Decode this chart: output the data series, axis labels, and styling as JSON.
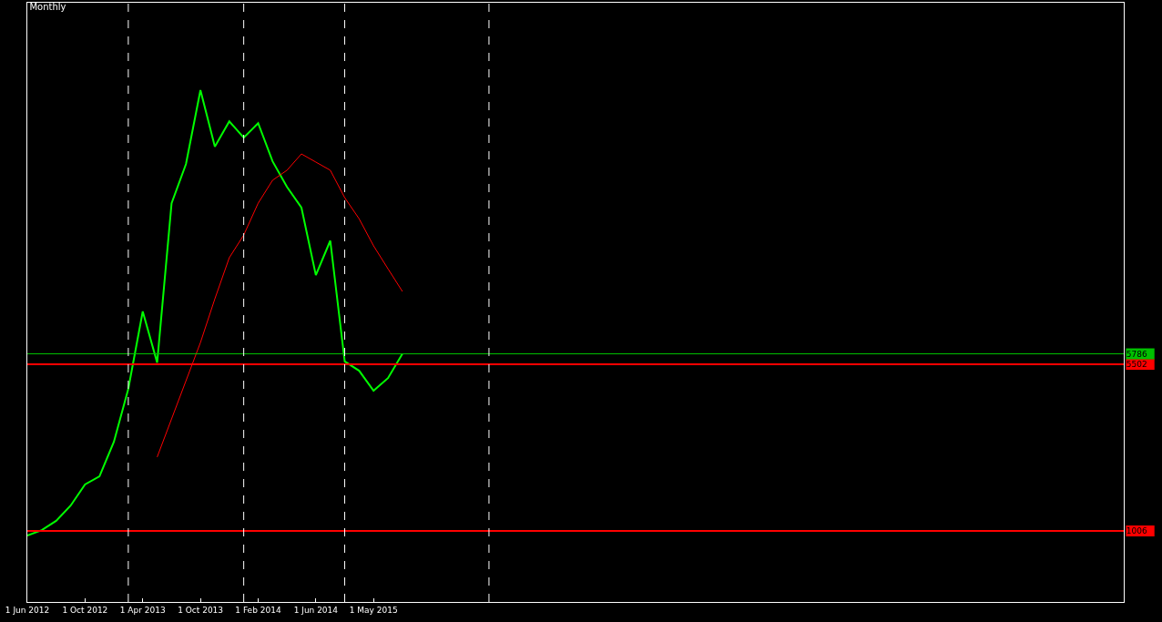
{
  "chart_data": {
    "type": "line",
    "title": "Monthly",
    "categories": [
      "1 Jun 2012",
      null,
      null,
      null,
      "1 Oct 2012",
      null,
      null,
      null,
      "1 Apr 2013",
      null,
      null,
      null,
      "1 Oct 2013",
      null,
      null,
      null,
      "1 Feb 2014",
      null,
      null,
      null,
      "1 Jun 2014",
      null,
      null,
      null,
      "1 May 2015",
      null,
      null,
      null,
      null,
      null,
      null,
      null,
      null,
      null,
      null,
      null,
      null,
      null,
      null,
      null,
      null,
      null,
      null,
      null,
      null,
      null,
      null,
      null,
      null,
      null,
      null,
      null,
      null,
      null,
      null,
      null,
      null,
      null,
      null,
      null,
      null,
      null,
      null,
      null,
      null,
      null,
      null,
      null,
      null,
      null,
      null,
      null,
      null,
      null,
      null,
      null,
      null
    ],
    "series": [
      {
        "color": "#00ff00",
        "values": [
          880,
          1030,
          1280,
          1690,
          2260,
          2480,
          3410,
          4840,
          6930,
          5550,
          9850,
          10910,
          12900,
          11380,
          12060,
          11620,
          12010,
          10980,
          10290,
          9730,
          7910,
          8840,
          5580,
          5330,
          4790,
          5130,
          5786,
          null,
          null,
          null,
          null,
          null,
          null,
          null,
          null,
          null,
          null,
          null,
          null,
          null,
          null,
          null,
          null,
          null,
          null,
          null,
          null,
          null,
          null,
          null,
          null,
          null,
          null,
          null,
          null,
          null,
          null,
          null,
          null,
          null,
          null,
          null,
          null,
          null,
          null,
          null,
          null,
          null,
          null,
          null,
          null,
          null,
          null,
          null,
          null,
          null,
          null
        ]
      },
      {
        "color": "#ff0000",
        "values": [
          null,
          null,
          null,
          null,
          null,
          null,
          null,
          null,
          null,
          3000,
          4030,
          5060,
          6090,
          7270,
          8380,
          8990,
          9850,
          10470,
          10740,
          11180,
          10960,
          10740,
          10000,
          9430,
          8700,
          8080,
          7470,
          null,
          null,
          null,
          null,
          null,
          null,
          null,
          null,
          null,
          null,
          null,
          null,
          null,
          null,
          null,
          null,
          null,
          null,
          null,
          null,
          null,
          null,
          null,
          null,
          null,
          null,
          null,
          null,
          null,
          null,
          null,
          null,
          null,
          null,
          null,
          null,
          null,
          null,
          null,
          null,
          null,
          null,
          null,
          null,
          null,
          null,
          null,
          null,
          null,
          null
        ]
      }
    ],
    "ylim": [
      -910,
      15260
    ],
    "yticks": [
      1006,
      5502,
      5786
    ],
    "grid": "x",
    "ref_lines": [
      {
        "axis": "y",
        "value": 5786,
        "color": "#00c000"
      },
      {
        "axis": "y",
        "value": 5502,
        "color": "#ff0000"
      },
      {
        "axis": "y",
        "value": 1006,
        "color": "#ff0000"
      }
    ]
  }
}
